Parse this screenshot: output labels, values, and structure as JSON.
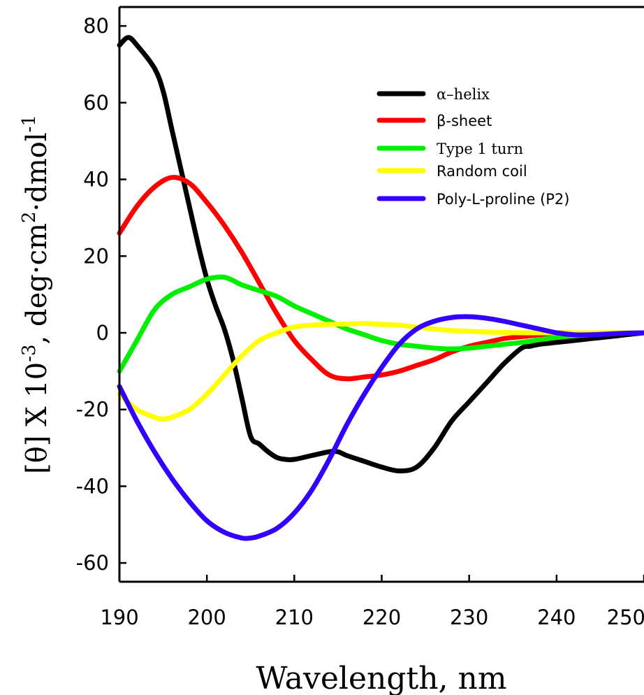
{
  "chart_data": {
    "type": "line",
    "title": "",
    "xlabel": "Wavelength, nm",
    "ylabel": {
      "prefix": "[θ] X 10",
      "exp1": "-3",
      "mid": ", deg·cm",
      "exp2": "2",
      "mid2": "·dmol",
      "exp3": "-1"
    },
    "xlim": [
      190,
      250
    ],
    "ylim": [
      -65,
      85
    ],
    "xticks": [
      190,
      200,
      210,
      220,
      230,
      240,
      250
    ],
    "xtick_labels": [
      "190",
      "200",
      "210",
      "220",
      "230",
      "240",
      "250"
    ],
    "yticks": [
      -60,
      -40,
      -20,
      0,
      20,
      40,
      60,
      80
    ],
    "ytick_labels": [
      "-60",
      "-40",
      "-20",
      "0",
      "20",
      "40",
      "60",
      "80"
    ],
    "grid": false,
    "legend_position": "top-right",
    "series": [
      {
        "name": "α–helix",
        "color": "#000000",
        "x": [
          190,
          191,
          192,
          194,
          195,
          196,
          197,
          198,
          199,
          200,
          201,
          202,
          203,
          204,
          205,
          206,
          207,
          208,
          209,
          210,
          212,
          214,
          215,
          216,
          218,
          220,
          222,
          224,
          226,
          228,
          230,
          232,
          234,
          236,
          237,
          238,
          240,
          242,
          244,
          246,
          248,
          250
        ],
        "y": [
          75,
          77,
          75,
          69,
          63,
          53,
          43,
          33,
          23,
          14,
          7,
          1,
          -7,
          -17,
          -27,
          -29,
          -31,
          -32.5,
          -33,
          -33,
          -32,
          -31,
          -31,
          -32,
          -33.5,
          -35,
          -36,
          -35,
          -30,
          -23,
          -18,
          -13,
          -8,
          -4,
          -3.5,
          -3,
          -2.5,
          -2,
          -1.5,
          -1,
          -0.5,
          0
        ]
      },
      {
        "name": "β-sheet",
        "color": "#ff0000",
        "x": [
          190,
          192,
          194,
          196,
          198,
          200,
          202,
          204,
          206,
          208,
          210,
          212,
          214,
          216,
          218,
          220,
          222,
          224,
          226,
          228,
          230,
          232,
          234,
          236,
          238,
          240,
          242,
          244,
          246,
          248,
          250
        ],
        "y": [
          26,
          33,
          38,
          40.5,
          39,
          34,
          28,
          21,
          13,
          5,
          -2,
          -7,
          -11,
          -12,
          -11.5,
          -11,
          -10,
          -8.5,
          -7,
          -5,
          -3.5,
          -2.5,
          -1.5,
          -1,
          -0.5,
          0,
          0,
          0,
          0,
          0,
          0
        ]
      },
      {
        "name": "Type 1 turn",
        "color": "#00ee00",
        "x": [
          190,
          192,
          194,
          196,
          198,
          200,
          202,
          204,
          206,
          208,
          210,
          212,
          214,
          216,
          218,
          220,
          222,
          224,
          226,
          228,
          230,
          232,
          234,
          236,
          238,
          240,
          242,
          244,
          246,
          248,
          250
        ],
        "y": [
          -10,
          -2,
          6,
          10,
          12,
          14,
          14.5,
          12.5,
          11,
          9.5,
          7,
          5,
          3,
          1,
          -0.5,
          -2,
          -3,
          -3.5,
          -4,
          -4.2,
          -4,
          -3.5,
          -3,
          -2.5,
          -1.8,
          -1.2,
          -0.8,
          -0.5,
          -0.3,
          -0.1,
          0
        ]
      },
      {
        "name": "Random coil",
        "color": "#ffff00",
        "x": [
          190,
          192,
          194,
          195,
          196,
          198,
          200,
          202,
          204,
          206,
          208,
          210,
          212,
          214,
          216,
          218,
          220,
          222,
          224,
          226,
          228,
          230,
          232,
          234,
          236,
          238,
          240,
          242,
          244,
          246,
          248,
          250
        ],
        "y": [
          -16,
          -20,
          -22,
          -22.5,
          -22,
          -20,
          -16,
          -11,
          -6,
          -2,
          0,
          1.5,
          2,
          2.2,
          2.3,
          2.4,
          2.2,
          2,
          1.5,
          1,
          0.6,
          0.4,
          0.2,
          0.1,
          0,
          0,
          0,
          0,
          0,
          0,
          0,
          0
        ]
      },
      {
        "name": "Poly-L-proline (P2)",
        "color": "#3300ff",
        "x": [
          190,
          192,
          194,
          196,
          198,
          200,
          202,
          204,
          205,
          206,
          208,
          210,
          212,
          214,
          216,
          218,
          220,
          222,
          224,
          226,
          228,
          230,
          232,
          234,
          236,
          238,
          240,
          242,
          244,
          246,
          248,
          250
        ],
        "y": [
          -14,
          -23,
          -31,
          -38,
          -44,
          -49,
          -52,
          -53.5,
          -53.5,
          -53,
          -51,
          -47,
          -41,
          -33,
          -24,
          -16,
          -9,
          -3,
          1,
          3,
          4,
          4.2,
          3.8,
          3,
          2,
          1,
          0,
          -0.5,
          -0.5,
          -0.3,
          -0.1,
          0
        ]
      }
    ]
  }
}
